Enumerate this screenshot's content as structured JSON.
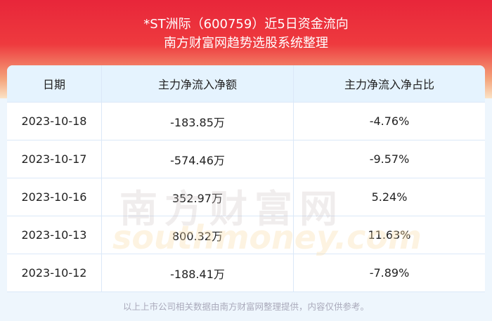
{
  "header": {
    "title": "*ST洲际（600759）近5日资金流向",
    "subtitle": "南方财富网趋势选股系统整理"
  },
  "table": {
    "columns": [
      "日期",
      "主力净流入净额",
      "主力净流入净占比"
    ],
    "rows": [
      [
        "2023-10-18",
        "-183.85万",
        "-4.76%"
      ],
      [
        "2023-10-17",
        "-574.46万",
        "-9.57%"
      ],
      [
        "2023-10-16",
        "352.97万",
        "5.24%"
      ],
      [
        "2023-10-13",
        "800.32万",
        "11.63%"
      ],
      [
        "2023-10-12",
        "-188.41万",
        "-7.89%"
      ]
    ]
  },
  "watermark": {
    "cn": "南方财富网",
    "en": "southmoney.com"
  },
  "footer": "以上上市公司相关数据由南方财富网整理提供，内容仅供参考。"
}
